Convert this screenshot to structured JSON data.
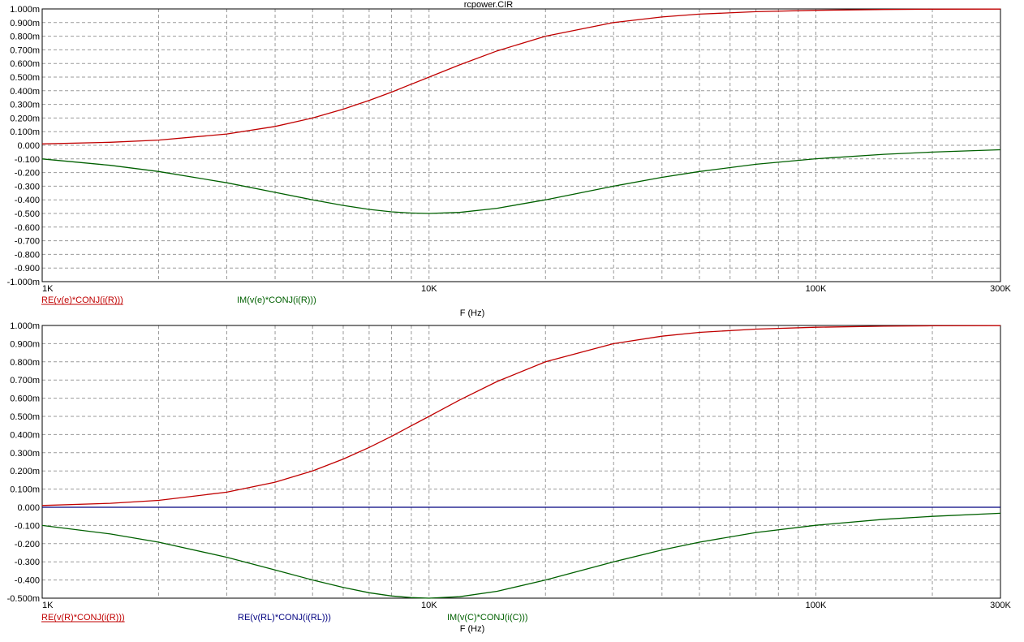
{
  "window_title": "rcpower.CIR",
  "colors": {
    "red": "#c00000",
    "green": "#006000",
    "blue": "#000080",
    "grid": "#9a9a9a"
  },
  "chart_data": [
    {
      "type": "line",
      "title": "rcpower.CIR",
      "x_scale": "log",
      "xlim": [
        1000,
        300000
      ],
      "x_ticks": [
        1000,
        10000,
        100000,
        300000
      ],
      "x_tick_labels": [
        "1K",
        "10K",
        "100K",
        "300K"
      ],
      "xlabel": "F (Hz)",
      "ylim": [
        -1.0,
        1.0
      ],
      "y_ticks": [
        1.0,
        0.9,
        0.8,
        0.7,
        0.6,
        0.5,
        0.4,
        0.3,
        0.2,
        0.1,
        0.0,
        -0.1,
        -0.2,
        -0.3,
        -0.4,
        -0.5,
        -0.6,
        -0.7,
        -0.8,
        -0.9,
        -1.0
      ],
      "y_tick_labels": [
        "1.000m",
        "0.900m",
        "0.800m",
        "0.700m",
        "0.600m",
        "0.500m",
        "0.400m",
        "0.300m",
        "0.200m",
        "0.100m",
        "0.000",
        "-0.100",
        "-0.200",
        "-0.300",
        "-0.400",
        "-0.500",
        "-0.600",
        "-0.700",
        "-0.800",
        "-0.900",
        "-1.000m"
      ],
      "grid": true,
      "series": [
        {
          "name": "RE(v(e)*CONJ(i(R)))",
          "color": "#c00000",
          "x": [
            1000,
            1500,
            2000,
            3000,
            4000,
            5000,
            6000,
            7000,
            8000,
            9000,
            10000,
            12000,
            15000,
            20000,
            30000,
            40000,
            50000,
            70000,
            100000,
            150000,
            200000,
            300000
          ],
          "y": [
            0.01,
            0.022,
            0.038,
            0.083,
            0.138,
            0.2,
            0.265,
            0.329,
            0.39,
            0.448,
            0.5,
            0.59,
            0.692,
            0.8,
            0.9,
            0.941,
            0.962,
            0.98,
            0.99,
            0.996,
            0.998,
            0.999
          ]
        },
        {
          "name": "IM(v(e)*CONJ(i(R)))",
          "color": "#006000",
          "x": [
            1000,
            1500,
            2000,
            3000,
            4000,
            5000,
            6000,
            7000,
            8000,
            9000,
            10000,
            12000,
            15000,
            20000,
            30000,
            40000,
            50000,
            70000,
            100000,
            150000,
            200000,
            300000
          ],
          "y": [
            -0.1,
            -0.147,
            -0.192,
            -0.275,
            -0.345,
            -0.4,
            -0.441,
            -0.47,
            -0.488,
            -0.497,
            -0.5,
            -0.492,
            -0.462,
            -0.4,
            -0.3,
            -0.235,
            -0.192,
            -0.139,
            -0.099,
            -0.066,
            -0.05,
            -0.033
          ]
        }
      ]
    },
    {
      "type": "line",
      "x_scale": "log",
      "xlim": [
        1000,
        300000
      ],
      "x_ticks": [
        1000,
        10000,
        100000,
        300000
      ],
      "x_tick_labels": [
        "1K",
        "10K",
        "100K",
        "300K"
      ],
      "xlabel": "F (Hz)",
      "ylim": [
        -0.5,
        1.0
      ],
      "y_ticks": [
        1.0,
        0.9,
        0.8,
        0.7,
        0.6,
        0.5,
        0.4,
        0.3,
        0.2,
        0.1,
        0.0,
        -0.1,
        -0.2,
        -0.3,
        -0.4,
        -0.5
      ],
      "y_tick_labels": [
        "1.000m",
        "0.900m",
        "0.800m",
        "0.700m",
        "0.600m",
        "0.500m",
        "0.400m",
        "0.300m",
        "0.200m",
        "0.100m",
        "0.000",
        "-0.100",
        "-0.200",
        "-0.300",
        "-0.400",
        "-0.500m"
      ],
      "grid": true,
      "series": [
        {
          "name": "RE(v(R)*CONJ(i(R)))",
          "color": "#c00000",
          "x": [
            1000,
            1500,
            2000,
            3000,
            4000,
            5000,
            6000,
            7000,
            8000,
            9000,
            10000,
            12000,
            15000,
            20000,
            30000,
            40000,
            50000,
            70000,
            100000,
            150000,
            200000,
            300000
          ],
          "y": [
            0.01,
            0.022,
            0.038,
            0.083,
            0.138,
            0.2,
            0.265,
            0.329,
            0.39,
            0.448,
            0.5,
            0.59,
            0.692,
            0.8,
            0.9,
            0.941,
            0.962,
            0.98,
            0.99,
            0.996,
            0.998,
            0.999
          ]
        },
        {
          "name": "RE(v(RL)*CONJ(i(RL)))",
          "color": "#000080",
          "x": [
            1000,
            300000
          ],
          "y": [
            0.0,
            0.0
          ]
        },
        {
          "name": "IM(v(C)*CONJ(i(C)))",
          "color": "#006000",
          "x": [
            1000,
            1500,
            2000,
            3000,
            4000,
            5000,
            6000,
            7000,
            8000,
            9000,
            10000,
            12000,
            15000,
            20000,
            30000,
            40000,
            50000,
            70000,
            100000,
            150000,
            200000,
            300000
          ],
          "y": [
            -0.1,
            -0.147,
            -0.192,
            -0.275,
            -0.345,
            -0.4,
            -0.441,
            -0.47,
            -0.488,
            -0.497,
            -0.5,
            -0.492,
            -0.462,
            -0.4,
            -0.3,
            -0.235,
            -0.192,
            -0.139,
            -0.099,
            -0.066,
            -0.05,
            -0.033
          ]
        }
      ]
    }
  ]
}
